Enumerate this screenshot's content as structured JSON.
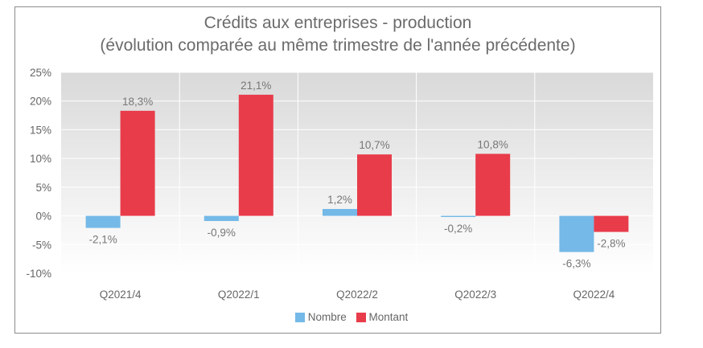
{
  "chart_data": {
    "type": "bar",
    "title": "Crédits aux entreprises - production",
    "subtitle": "(évolution comparée au même trimestre de l'année précédente)",
    "categories": [
      "Q2021/4",
      "Q2022/1",
      "Q2022/2",
      "Q2022/3",
      "Q2022/4"
    ],
    "series": [
      {
        "name": "Nombre",
        "color": "#74b9e7",
        "values": [
          -2.1,
          -0.9,
          1.2,
          -0.2,
          -6.3
        ],
        "labels": [
          "-2,1%",
          "-0,9%",
          "1,2%",
          "-0,2%",
          "-6,3%"
        ]
      },
      {
        "name": "Montant",
        "color": "#e83c4b",
        "values": [
          18.3,
          21.1,
          10.7,
          10.8,
          -2.8
        ],
        "labels": [
          "18,3%",
          "21,1%",
          "10,7%",
          "10,8%",
          "-2,8%"
        ]
      }
    ],
    "ylim": [
      -10,
      25
    ],
    "yticks": [
      -10,
      -5,
      0,
      5,
      10,
      15,
      20,
      25
    ],
    "ytick_labels": [
      "-10%",
      "-5%",
      "0%",
      "5%",
      "10%",
      "15%",
      "20%",
      "25%"
    ],
    "grid": true,
    "legend_position": "bottom"
  }
}
